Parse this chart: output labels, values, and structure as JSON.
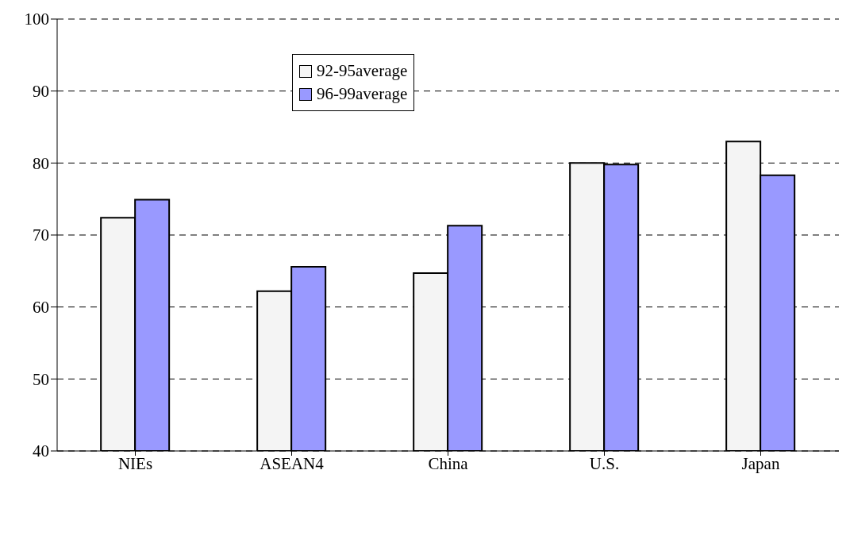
{
  "chart_data": {
    "type": "bar",
    "categories": [
      "NIEs",
      "ASEAN4",
      "China",
      "U.S.",
      "Japan"
    ],
    "series": [
      {
        "name": "92-95average",
        "color": "#f4f4f4",
        "values": [
          72.4,
          62.2,
          64.7,
          80.0,
          83.0
        ]
      },
      {
        "name": "96-99average",
        "color": "#9999ff",
        "values": [
          74.9,
          65.6,
          71.3,
          79.8,
          78.3
        ]
      }
    ],
    "ylim": [
      40,
      100
    ],
    "yticks": [
      40,
      50,
      60,
      70,
      80,
      90,
      100
    ],
    "grid": "y",
    "legend": "top"
  }
}
